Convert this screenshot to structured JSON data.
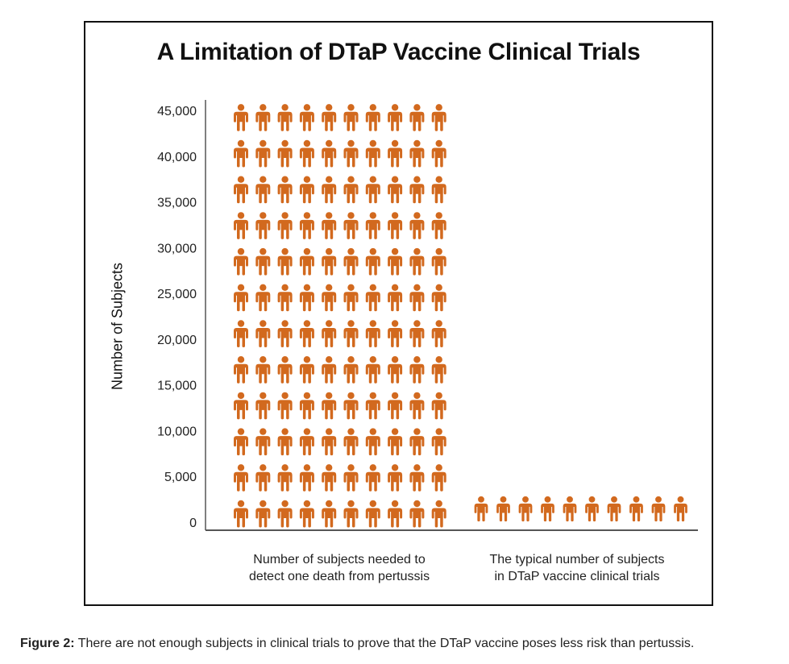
{
  "chart_data": {
    "type": "bar",
    "subtype": "pictograph",
    "title": "A Limitation of DTaP Vaccine Clinical Trials",
    "xlabel": "",
    "ylabel": "Number of Subjects",
    "ylim": [
      0,
      45000
    ],
    "yticks": [
      "0",
      "5,000",
      "10,000",
      "15,000",
      "20,000",
      "25,000",
      "30,000",
      "35,000",
      "40,000",
      "45,000"
    ],
    "categories": [
      "Number of subjects needed to detect one death from pertussis",
      "The typical number of subjects in DTaP vaccine clinical trials"
    ],
    "category_lines": [
      [
        "Number of subjects needed to",
        "detect one death from pertussis"
      ],
      [
        "The typical number of subjects",
        "in DTaP vaccine clinical trials"
      ]
    ],
    "values": [
      45000,
      2000
    ],
    "icon_rows": [
      12,
      1
    ],
    "icons_per_row": 10,
    "icon": "person-icon",
    "color": "#D2691E",
    "grid": false
  },
  "caption": {
    "label": "Figure 2:",
    "text": " There are not enough subjects in clinical trials to prove that the DTaP vaccine poses less risk than pertussis."
  }
}
